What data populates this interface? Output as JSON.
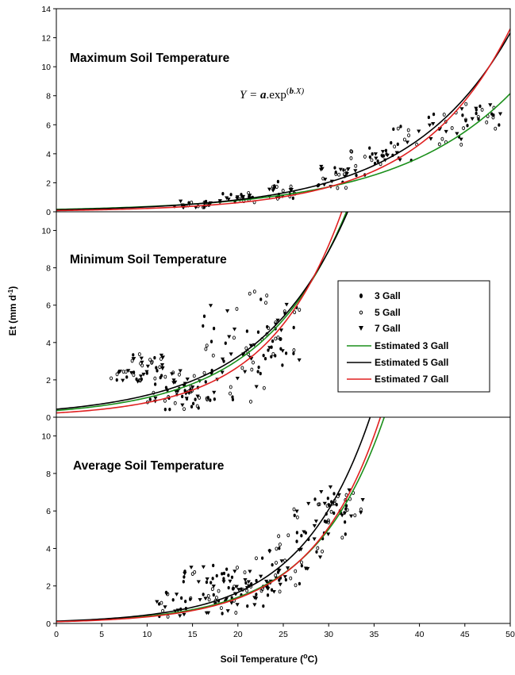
{
  "chart_data": {
    "type": "scatter",
    "xlabel": "Soil Temperature (",
    "xlabel_unit": "o",
    "xlabel_unit_tail": "C)",
    "ylabel_main": "Et (mm d",
    "ylabel_sup": "-1",
    "ylabel_tail": ")",
    "xlim": [
      0,
      50
    ],
    "x_ticks": [
      0,
      5,
      10,
      15,
      20,
      25,
      30,
      35,
      40,
      45,
      50
    ],
    "equation": {
      "lhs": "Y = ",
      "a": "a",
      "mid": ".exp",
      "sup_open": "(",
      "b": "b",
      "sup_tail": ".X)"
    },
    "legend": {
      "placement": "middle-right",
      "entries": [
        {
          "label": "3 Gall",
          "marker": "filled-circle"
        },
        {
          "label": "5 Gall",
          "marker": "open-circle"
        },
        {
          "label": "7 Gall",
          "marker": "filled-triangle-down"
        },
        {
          "label": "Estimated 3 Gall",
          "line_color": "#1a8f1a"
        },
        {
          "label": "Estimated 5 Gall",
          "line_color": "#000000"
        },
        {
          "label": "Estimated 7 Gall",
          "line_color": "#e02020"
        }
      ]
    },
    "panels": [
      {
        "title": "Maximum Soil Temperature",
        "ylim": [
          0,
          14
        ],
        "y_ticks": [
          0,
          2,
          4,
          6,
          8,
          10,
          12,
          14
        ],
        "fits": [
          {
            "series": "Estimated 3 Gall",
            "color": "#1a8f1a",
            "a": 0.165,
            "b": 0.078
          },
          {
            "series": "Estimated 5 Gall",
            "color": "#000000",
            "a": 0.137,
            "b": 0.09
          },
          {
            "series": "Estimated 7 Gall",
            "color": "#e02020",
            "a": 0.085,
            "b": 0.1
          }
        ],
        "scatter_region": {
          "x": [
            15,
            48
          ],
          "clusters": [
            [
              15,
              0.5,
              0.3
            ],
            [
              20,
              0.9,
              0.4
            ],
            [
              25,
              1.5,
              0.6
            ],
            [
              30,
              2.4,
              0.8
            ],
            [
              34,
              3.5,
              1.1
            ],
            [
              38,
              4.8,
              1.3
            ],
            [
              43,
              5.8,
              1.4
            ],
            [
              47,
              6.6,
              0.9
            ]
          ]
        }
      },
      {
        "title": "Minimum Soil Temperature",
        "ylim": [
          0,
          11
        ],
        "y_ticks": [
          0,
          2,
          4,
          6,
          8,
          10
        ],
        "fits": [
          {
            "series": "Estimated 3 Gall",
            "color": "#1a8f1a",
            "a": 0.36,
            "b": 0.107
          },
          {
            "series": "Estimated 5 Gall",
            "color": "#000000",
            "a": 0.43,
            "b": 0.101
          },
          {
            "series": "Estimated 7 Gall",
            "color": "#e02020",
            "a": 0.23,
            "b": 0.123
          }
        ],
        "scatter_region": {
          "x": [
            7,
            27
          ],
          "clusters": [
            [
              8,
              2.2,
              0.3
            ],
            [
              10,
              3.0,
              0.4
            ],
            [
              12,
              1.8,
              1.0
            ],
            [
              14,
              1.0,
              0.6
            ],
            [
              16,
              1.5,
              0.9
            ],
            [
              18,
              3.5,
              2.5
            ],
            [
              21,
              2.8,
              2.0
            ],
            [
              23,
              4.5,
              2.5
            ],
            [
              25,
              4.0,
              2.2
            ]
          ]
        }
      },
      {
        "title": "Average Soil Temperature",
        "ylim": [
          0,
          11
        ],
        "y_ticks": [
          0,
          2,
          4,
          6,
          8,
          10
        ],
        "fits": [
          {
            "series": "Estimated 3 Gall",
            "color": "#1a8f1a",
            "a": 0.108,
            "b": 0.128
          },
          {
            "series": "Estimated 5 Gall",
            "color": "#000000",
            "a": 0.123,
            "b": 0.13
          },
          {
            "series": "Estimated 7 Gall",
            "color": "#e02020",
            "a": 0.092,
            "b": 0.134
          }
        ],
        "scatter_region": {
          "x": [
            12,
            33
          ],
          "clusters": [
            [
              13,
              1.0,
              0.7
            ],
            [
              16,
              2.2,
              1.0
            ],
            [
              18,
              1.5,
              1.0
            ],
            [
              20,
              2.0,
              1.0
            ],
            [
              22,
              1.6,
              0.7
            ],
            [
              24,
              2.8,
              1.3
            ],
            [
              26,
              3.5,
              1.5
            ],
            [
              28,
              5.0,
              1.5
            ],
            [
              30,
              5.8,
              1.3
            ],
            [
              32,
              6.5,
              0.8
            ]
          ]
        }
      }
    ]
  }
}
